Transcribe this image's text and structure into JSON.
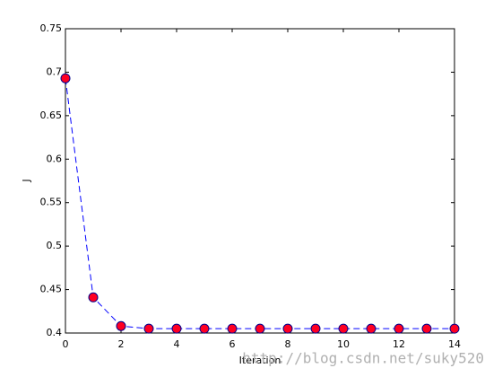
{
  "chart_data": {
    "type": "line",
    "x_label": "Iteration",
    "y_label": "J",
    "x": [
      0,
      1,
      2,
      3,
      4,
      5,
      6,
      7,
      8,
      9,
      10,
      11,
      12,
      13,
      14
    ],
    "series": [
      {
        "color": "#0000ff",
        "marker_color": "#ff0022",
        "values": [
          0.693,
          0.441,
          0.408,
          0.405,
          0.405,
          0.405,
          0.405,
          0.405,
          0.405,
          0.405,
          0.405,
          0.405,
          0.405,
          0.405,
          0.405
        ]
      }
    ],
    "xlim": [
      0,
      14
    ],
    "xticks": [
      0,
      2,
      4,
      6,
      8,
      10,
      12,
      14
    ],
    "ylim": [
      0.4,
      0.75
    ],
    "yticks": [
      0.4,
      0.45,
      0.5,
      0.55,
      0.6,
      0.65,
      0.7,
      0.75
    ],
    "grid": false
  },
  "watermark": "http://blog.csdn.net/suky520"
}
